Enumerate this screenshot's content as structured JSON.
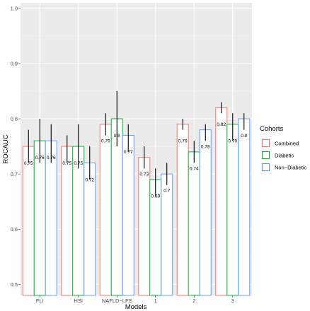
{
  "chart_data": {
    "type": "bar",
    "xlabel": "Models",
    "ylabel": "ROCAUC",
    "ylim": [
      0.48,
      1.01
    ],
    "yticks": [
      0.5,
      0.6,
      0.7,
      0.8,
      0.9,
      1.0
    ],
    "ytick_labels": [
      "0.5",
      "0.6",
      "0.7",
      "0.8",
      "0.9",
      "1.0"
    ],
    "categories": [
      "FLI",
      "HSI",
      "NAFLD−LFS",
      "1",
      "2",
      "3"
    ],
    "legend_title": "Cohorts",
    "legend_position": "right",
    "grid": true,
    "bar_fill": "#ffffff",
    "panel_background": "#ebebeb",
    "series": [
      {
        "name": "Combined",
        "color": "#f8766d",
        "values": [
          0.75,
          0.75,
          0.79,
          0.73,
          0.79,
          0.82
        ],
        "labels": [
          "0.75",
          "0.75",
          "0.79",
          "0.73",
          "0.79",
          "0.82"
        ],
        "ci_low": [
          0.72,
          0.72,
          0.77,
          0.71,
          0.78,
          0.81
        ],
        "ci_high": [
          0.78,
          0.77,
          0.81,
          0.75,
          0.8,
          0.83
        ]
      },
      {
        "name": "Diabetic",
        "color": "#00ba38",
        "values": [
          0.76,
          0.75,
          0.8,
          0.69,
          0.74,
          0.79
        ],
        "labels": [
          "0.76",
          "0.75",
          "0.8",
          "0.69",
          "0.74",
          "0.79"
        ],
        "ci_low": [
          0.72,
          0.71,
          0.75,
          0.66,
          0.72,
          0.76
        ],
        "ci_high": [
          0.8,
          0.79,
          0.85,
          0.71,
          0.76,
          0.81
        ]
      },
      {
        "name": "Non−Diabetic",
        "color": "#619cff",
        "values": [
          0.76,
          0.72,
          0.77,
          0.7,
          0.78,
          0.8
        ],
        "labels": [
          "0.76",
          "0.72",
          "0.77",
          "0.7",
          "0.78",
          "0.8"
        ],
        "ci_low": [
          0.72,
          0.69,
          0.74,
          0.68,
          0.76,
          0.78
        ],
        "ci_high": [
          0.79,
          0.75,
          0.79,
          0.72,
          0.79,
          0.81
        ]
      }
    ]
  }
}
